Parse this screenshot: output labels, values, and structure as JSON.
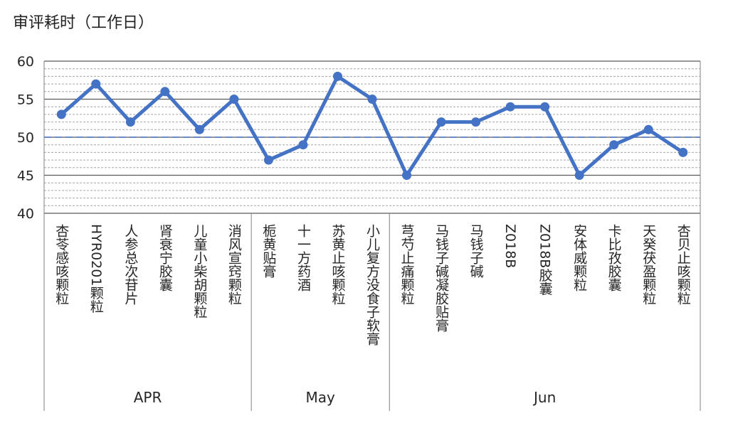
{
  "chart_data": {
    "type": "line",
    "title": "审评耗时（工作日）",
    "ylim": [
      40,
      60
    ],
    "yticks": [
      40,
      45,
      50,
      55,
      60
    ],
    "grid": true,
    "legend": "none",
    "categories": [
      "杏苓感咳颗粒",
      "HYR0201颗粒",
      "人参总次苷片",
      "肾衰宁胶囊",
      "儿童小柴胡颗粒",
      "消风宣窍颗粒",
      "栀黄贴膏",
      "十一方药酒",
      "苏黄止咳颗粒",
      "小儿复方没食子软膏",
      "芎芍止痛颗粒",
      "马钱子碱凝胶贴膏",
      "马钱子碱",
      "Z018B",
      "Z018B胶囊",
      "安体威颗粒",
      "卡比孜胶囊",
      "天癸茯盈颗粒",
      "杏贝止咳颗粒"
    ],
    "groups": [
      {
        "label": "APR",
        "count": 6
      },
      {
        "label": "May",
        "count": 4
      },
      {
        "label": "Jun",
        "count": 9
      }
    ],
    "series": [
      {
        "values": [
          53,
          57,
          52,
          56,
          51,
          55,
          47,
          49,
          58,
          55,
          45,
          52,
          52,
          54,
          54,
          45,
          49,
          51,
          48
        ]
      }
    ],
    "colors": {
      "line": "#4472C4",
      "major_grid": "#595959",
      "minor_grid": "#A6A6A6",
      "axis": "#808080",
      "text": "#262626"
    }
  }
}
